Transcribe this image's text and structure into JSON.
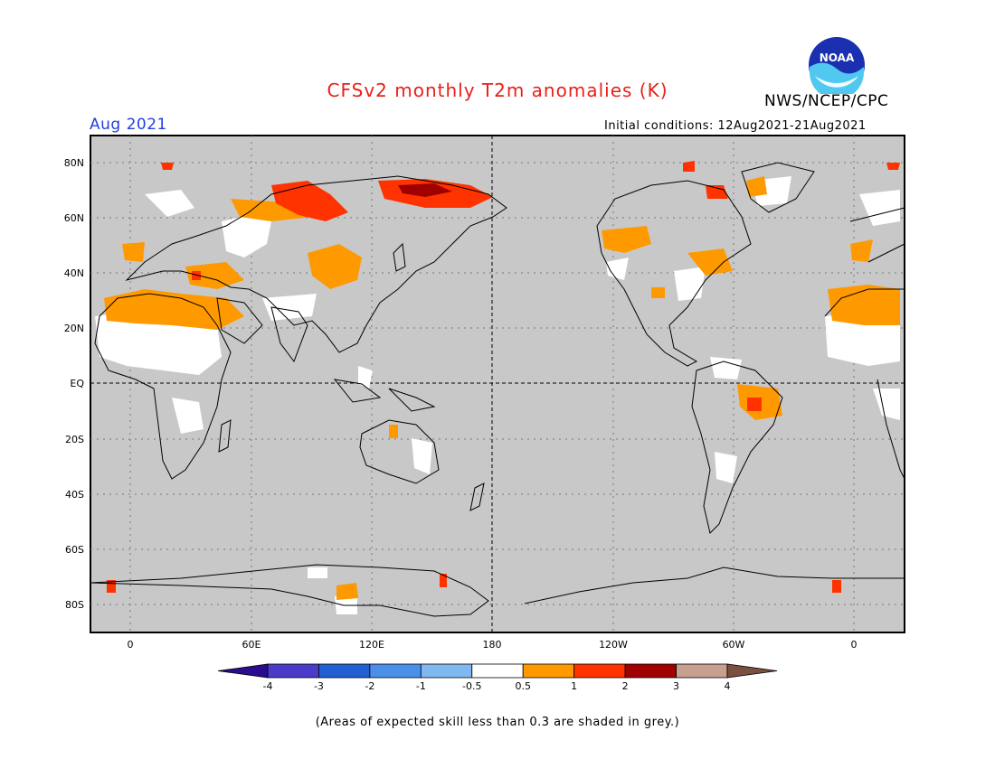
{
  "header": {
    "title": "CFSv2 monthly T2m anomalies (K)",
    "agency": "NWS/NCEP/CPC",
    "logo_text": "NOAA",
    "month": "Aug 2021",
    "initial_conditions": "Initial conditions: 12Aug2021-21Aug2021"
  },
  "map": {
    "projection": "cylindrical-equidistant",
    "lat_labels": [
      "80N",
      "60N",
      "40N",
      "20N",
      "EQ",
      "20S",
      "40S",
      "60S",
      "80S"
    ],
    "lon_labels": [
      "0",
      "60E",
      "120E",
      "180",
      "120W",
      "60W",
      "0"
    ],
    "background_color": "#c8c8c8"
  },
  "colorbar": {
    "labels": [
      "-4",
      "-3",
      "-2",
      "-1",
      "-0.5",
      "0.5",
      "1",
      "2",
      "3",
      "4"
    ],
    "colors": [
      "#2a0d8e",
      "#4a3cc8",
      "#2060d0",
      "#4a90e8",
      "#80b8f0",
      "#ffffff",
      "#ff9900",
      "#ff3300",
      "#a00000",
      "#c8a090",
      "#7a5040"
    ]
  },
  "footnote": "(Areas of expected skill less than 0.3 are shaded in grey.)"
}
